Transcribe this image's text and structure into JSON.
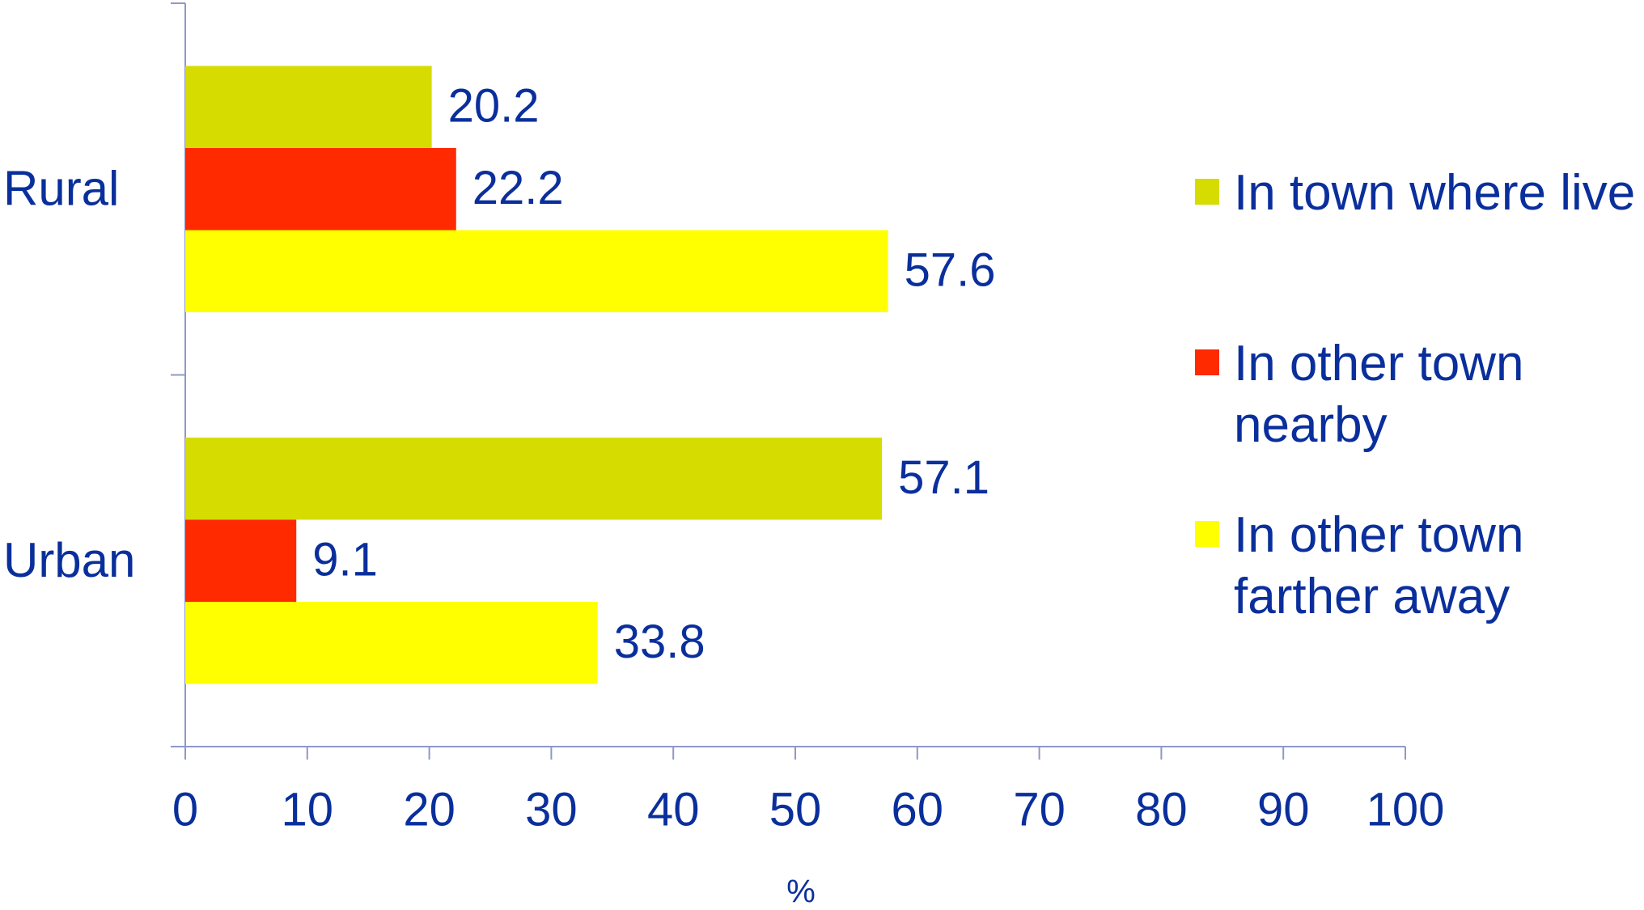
{
  "chart_data": {
    "type": "bar",
    "orientation": "horizontal",
    "categories": [
      "Rural",
      "Urban"
    ],
    "series": [
      {
        "name": "In town where live",
        "color": "#d6dc00",
        "values": [
          20.2,
          57.1
        ]
      },
      {
        "name": "In other town nearby",
        "color": "#ff2a00",
        "values": [
          22.2,
          9.1
        ]
      },
      {
        "name": "In other town farther away",
        "color": "#ffff00",
        "values": [
          57.6,
          33.8
        ]
      }
    ],
    "xlabel": "%",
    "xlim": [
      0,
      100
    ],
    "xticks": [
      0,
      10,
      20,
      30,
      40,
      50,
      60,
      70,
      80,
      90,
      100
    ],
    "grid": false,
    "legend": "right"
  }
}
